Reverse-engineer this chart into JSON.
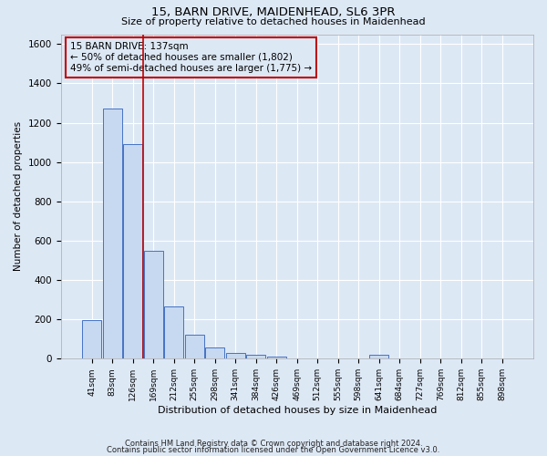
{
  "title1": "15, BARN DRIVE, MAIDENHEAD, SL6 3PR",
  "title2": "Size of property relative to detached houses in Maidenhead",
  "xlabel": "Distribution of detached houses by size in Maidenhead",
  "ylabel": "Number of detached properties",
  "annotation_line1": "15 BARN DRIVE: 137sqm",
  "annotation_line2": "← 50% of detached houses are smaller (1,802)",
  "annotation_line3": "49% of semi-detached houses are larger (1,775) →",
  "footer1": "Contains HM Land Registry data © Crown copyright and database right 2024.",
  "footer2": "Contains public sector information licensed under the Open Government Licence v3.0.",
  "categories": [
    "41sqm",
    "83sqm",
    "126sqm",
    "169sqm",
    "212sqm",
    "255sqm",
    "298sqm",
    "341sqm",
    "384sqm",
    "426sqm",
    "469sqm",
    "512sqm",
    "555sqm",
    "598sqm",
    "641sqm",
    "684sqm",
    "727sqm",
    "769sqm",
    "812sqm",
    "855sqm",
    "898sqm"
  ],
  "values": [
    195,
    1270,
    1090,
    550,
    265,
    120,
    55,
    30,
    20,
    10,
    0,
    0,
    0,
    0,
    20,
    0,
    0,
    0,
    0,
    0,
    0
  ],
  "bar_color": "#c6d9f1",
  "bar_edge_color": "#4472c4",
  "vline_x": 2.5,
  "vline_color": "#c00000",
  "ylim": [
    0,
    1650
  ],
  "yticks": [
    0,
    200,
    400,
    600,
    800,
    1000,
    1200,
    1400,
    1600
  ],
  "annotation_box_color": "#c00000",
  "bg_color": "#dde8f5",
  "grid_color": "#ffffff"
}
